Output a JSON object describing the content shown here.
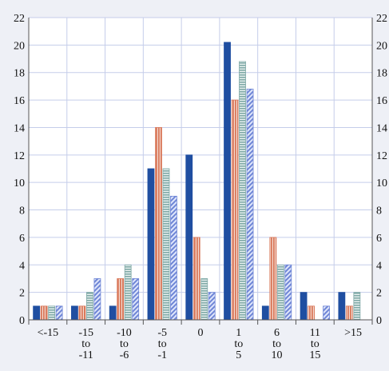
{
  "chart_data": {
    "type": "bar",
    "title": "",
    "xlabel": "",
    "ylabel": "",
    "ylim": [
      0,
      22
    ],
    "yticks": [
      0,
      2,
      4,
      6,
      8,
      10,
      12,
      14,
      16,
      18,
      20,
      22
    ],
    "grid": true,
    "legend": "none",
    "categories": [
      [
        "<-15"
      ],
      [
        "-15",
        "to",
        "-11"
      ],
      [
        "-10",
        "to",
        "-6"
      ],
      [
        "-5",
        "to",
        "-1"
      ],
      [
        "0"
      ],
      [
        "1",
        "to",
        "5"
      ],
      [
        "6",
        "to",
        "10"
      ],
      [
        "11",
        "to",
        "15"
      ],
      [
        ">15"
      ]
    ],
    "series": [
      {
        "values": [
          1,
          1,
          1,
          11,
          12,
          20.2,
          1,
          2,
          2
        ],
        "color": "#1f4ea1",
        "pattern": "solid"
      },
      {
        "values": [
          1,
          1,
          3,
          14,
          6,
          16,
          6,
          1,
          1
        ],
        "color": "#d9785a",
        "pattern": "vertical-stripes"
      },
      {
        "values": [
          1,
          2,
          4,
          11,
          3,
          18.8,
          4,
          0,
          2
        ],
        "color": "#7fa9a6",
        "pattern": "horizontal-stripes"
      },
      {
        "values": [
          1,
          3,
          3,
          9,
          2,
          16.8,
          4,
          1,
          0
        ],
        "color": "#6f86d6",
        "pattern": "diagonal-hatch"
      }
    ],
    "colors": {
      "background": "#eef0f6",
      "plot_background": "#ffffff",
      "gridline": "#c5cdea",
      "axis": "#555555"
    }
  }
}
